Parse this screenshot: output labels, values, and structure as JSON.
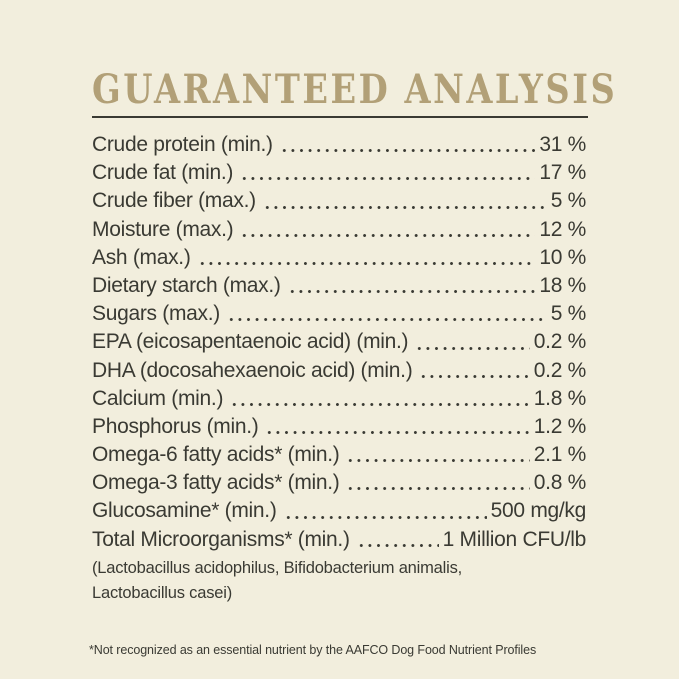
{
  "page": {
    "background_color": "#f2eedd",
    "text_color": "#3a3a33",
    "accent_color": "#b2a077"
  },
  "title": "GUARANTEED ANALYSIS",
  "analysis": {
    "rows": [
      {
        "label": "Crude protein (min.)",
        "value": "31 %"
      },
      {
        "label": "Crude fat (min.)",
        "value": "17 %"
      },
      {
        "label": "Crude fiber (max.)",
        "value": "5 %"
      },
      {
        "label": "Moisture (max.)",
        "value": "12 %"
      },
      {
        "label": "Ash (max.)",
        "value": "10 %"
      },
      {
        "label": "Dietary starch (max.)",
        "value": "18 %"
      },
      {
        "label": "Sugars (max.)",
        "value": "5 %"
      },
      {
        "label": "EPA (eicosapentaenoic acid) (min.)",
        "value": "0.2 %"
      },
      {
        "label": "DHA (docosahexaenoic acid) (min.)",
        "value": "0.2 %"
      },
      {
        "label": "Calcium (min.)",
        "value": "1.8 %"
      },
      {
        "label": "Phosphorus (min.)",
        "value": "1.2 %"
      },
      {
        "label": "Omega-6 fatty acids* (min.)",
        "value": "2.1 %"
      },
      {
        "label": "Omega-3 fatty acids* (min.)",
        "value": "0.8 %"
      },
      {
        "label": "Glucosamine* (min.)",
        "value": "500 mg/kg"
      },
      {
        "label": "Total Microorganisms* (min.)",
        "value": "1 Million CFU/lb"
      }
    ],
    "microorganisms_note": "(Lactobacillus acidophilus, Bifidobacterium animalis, Lactobacillus casei)"
  },
  "footnote": "*Not recognized as an essential nutrient by the AAFCO Dog Food Nutrient Profiles"
}
